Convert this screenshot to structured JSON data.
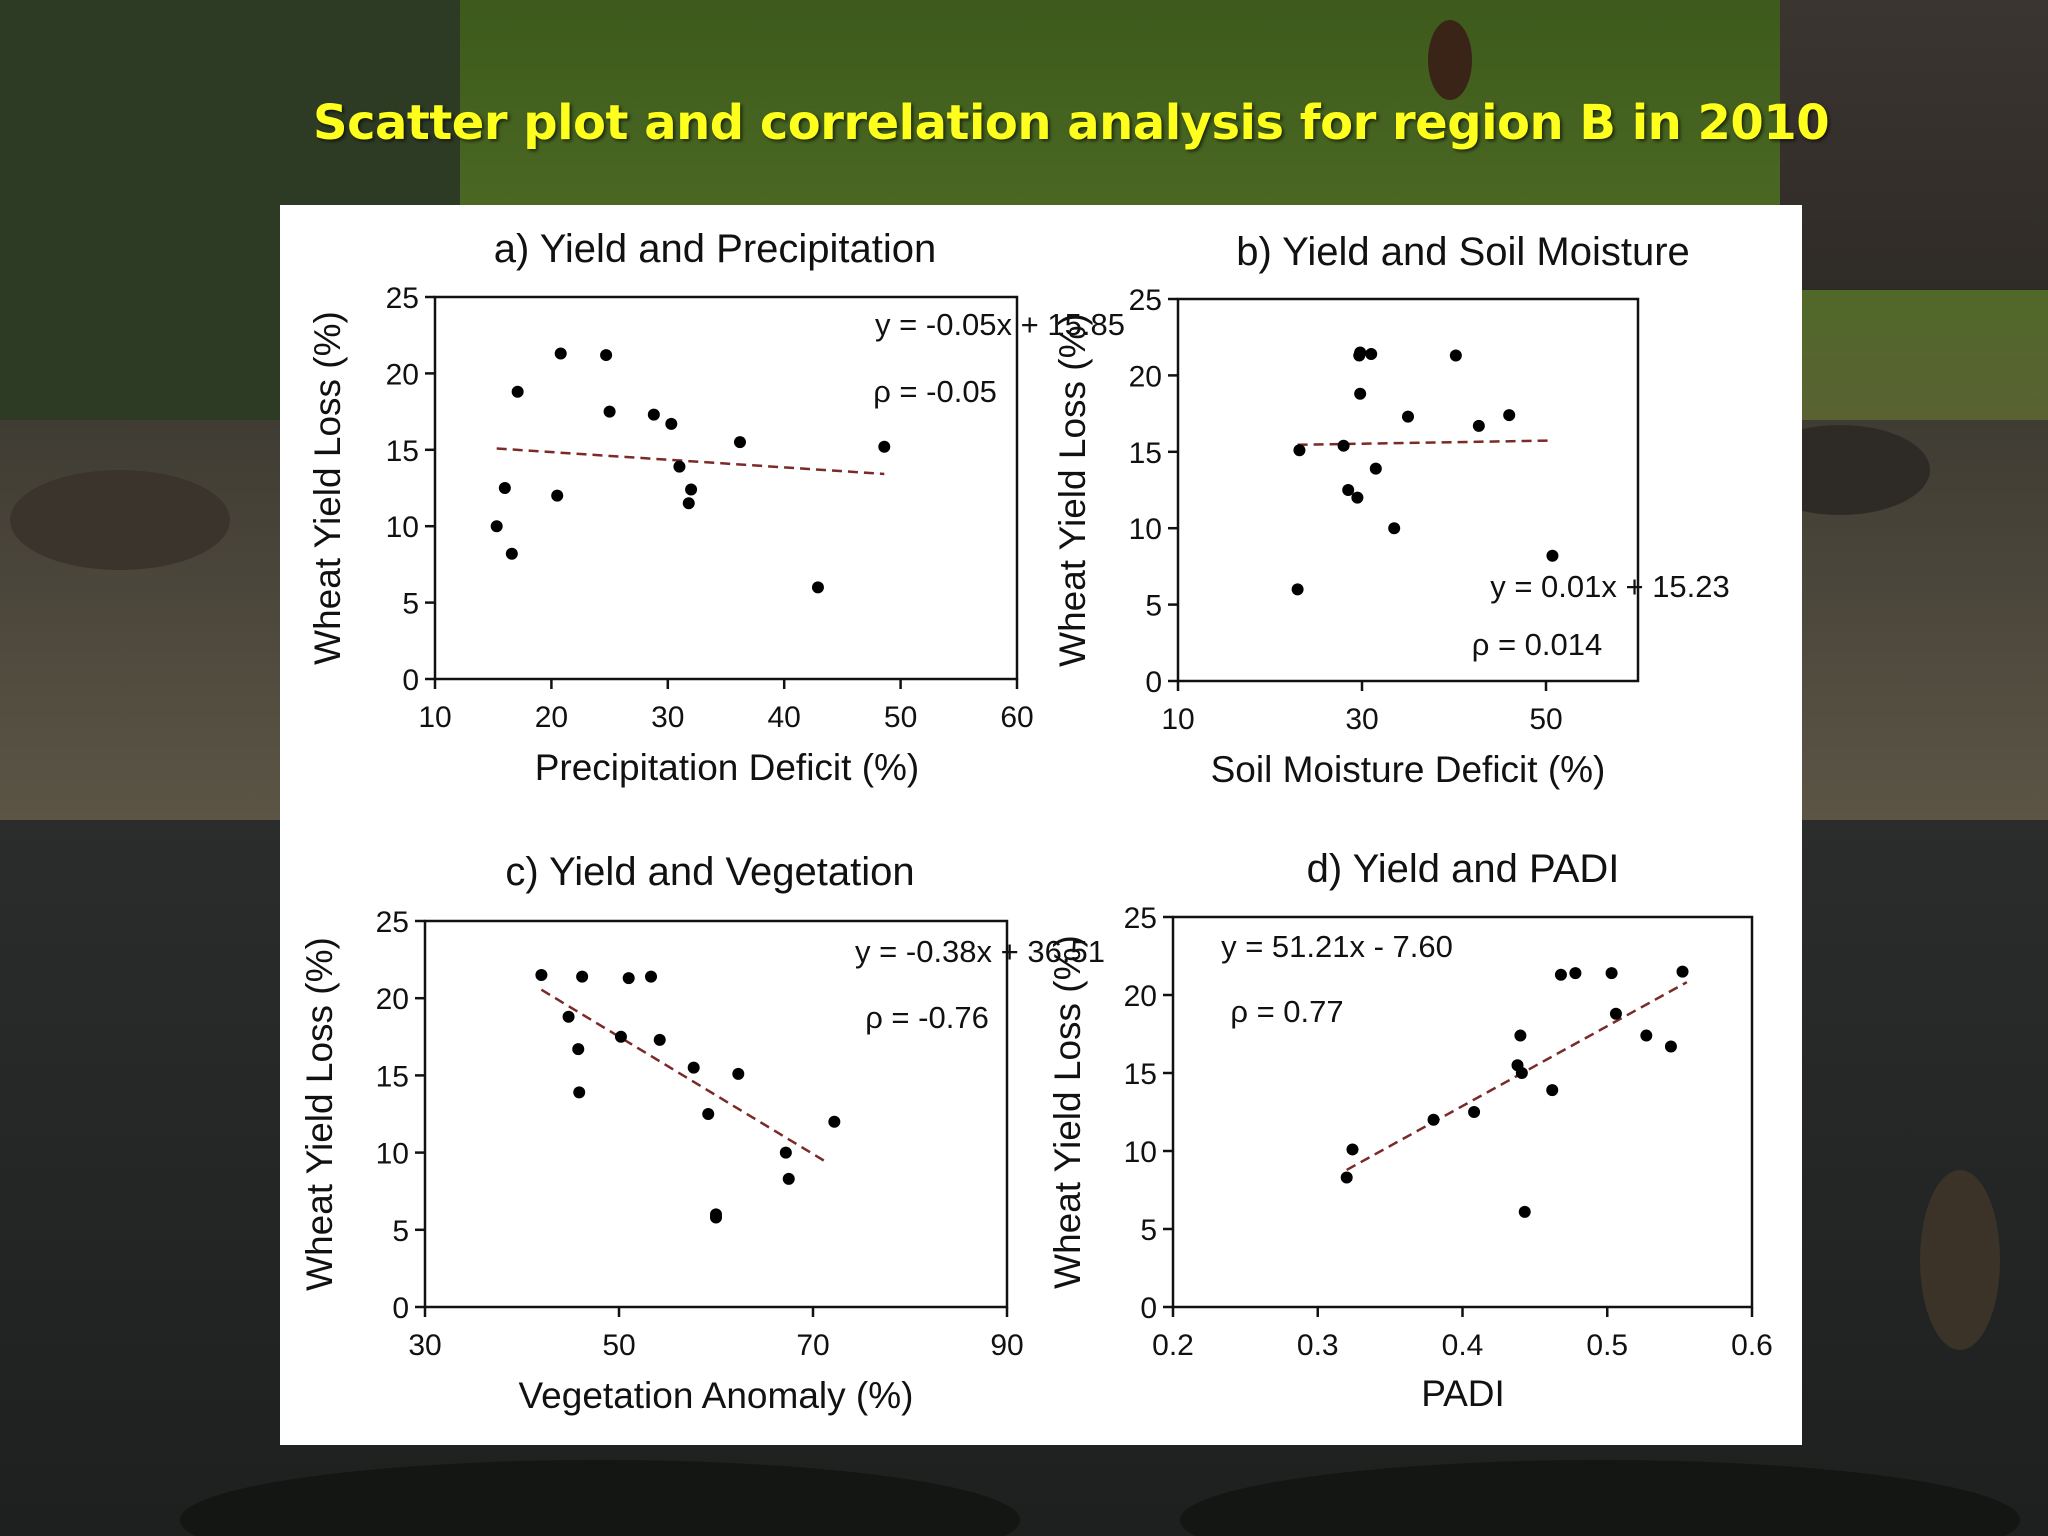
{
  "slide": {
    "title": "Scatter plot and correlation analysis for region B in 2010"
  },
  "colors": {
    "title": "#ffff1e",
    "trendline": "#7a2a28",
    "points": "#000000",
    "panel": "#ffffff"
  },
  "chart_data": [
    {
      "type": "scatter",
      "title": "a) Yield and Precipitation",
      "xlabel": "Precipitation Deficit (%)",
      "ylabel": "Wheat Yield Loss (%)",
      "xlim": [
        10,
        60
      ],
      "ylim": [
        0,
        25
      ],
      "xticks": [
        10,
        20,
        30,
        40,
        50,
        60
      ],
      "xtick_labels": [
        "10",
        "20",
        "30",
        "40",
        "50",
        "60"
      ],
      "yticks": [
        0,
        5,
        10,
        15,
        20,
        25
      ],
      "ytick_labels": [
        "0",
        "5",
        "10",
        "15",
        "20",
        "25"
      ],
      "equation": "y = -0.05x + 15.85",
      "rho": "ρ = -0.05",
      "annotation_position": "top-right",
      "trend": {
        "slope": -0.05,
        "intercept": 15.85,
        "x_range": [
          15.3,
          48.6
        ]
      },
      "points": [
        {
          "x": 15.3,
          "y": 10.0
        },
        {
          "x": 16.0,
          "y": 12.5
        },
        {
          "x": 16.6,
          "y": 8.2
        },
        {
          "x": 17.1,
          "y": 18.8
        },
        {
          "x": 20.5,
          "y": 12.0
        },
        {
          "x": 20.8,
          "y": 21.3
        },
        {
          "x": 24.7,
          "y": 21.2
        },
        {
          "x": 25.0,
          "y": 17.5
        },
        {
          "x": 28.8,
          "y": 17.3
        },
        {
          "x": 30.3,
          "y": 16.7
        },
        {
          "x": 31.0,
          "y": 13.9
        },
        {
          "x": 31.8,
          "y": 11.5
        },
        {
          "x": 32.0,
          "y": 12.4
        },
        {
          "x": 36.2,
          "y": 15.5
        },
        {
          "x": 42.9,
          "y": 6.0
        },
        {
          "x": 48.6,
          "y": 15.2
        }
      ]
    },
    {
      "type": "scatter",
      "title": "b) Yield and Soil Moisture",
      "xlabel": "Soil Moisture Deficit (%)",
      "ylabel": "Wheat Yield Loss (%)",
      "xlim": [
        10,
        60
      ],
      "ylim": [
        0,
        25
      ],
      "xticks": [
        10,
        30,
        50
      ],
      "xtick_labels": [
        "10",
        "30",
        "50"
      ],
      "yticks": [
        0,
        5,
        10,
        15,
        20,
        25
      ],
      "ytick_labels": [
        "0",
        "5",
        "10",
        "15",
        "20",
        "25"
      ],
      "equation": "y = 0.01x + 15.23",
      "rho": "ρ = 0.014",
      "annotation_position": "bottom-right",
      "trend": {
        "slope": 0.01,
        "intercept": 15.23,
        "x_range": [
          23.0,
          50.8
        ]
      },
      "points": [
        {
          "x": 23.0,
          "y": 6.0
        },
        {
          "x": 23.2,
          "y": 15.1
        },
        {
          "x": 28.0,
          "y": 15.4
        },
        {
          "x": 28.5,
          "y": 12.5
        },
        {
          "x": 29.5,
          "y": 12.0
        },
        {
          "x": 29.7,
          "y": 21.3
        },
        {
          "x": 29.8,
          "y": 21.5
        },
        {
          "x": 29.8,
          "y": 18.8
        },
        {
          "x": 31.0,
          "y": 21.4
        },
        {
          "x": 31.5,
          "y": 13.9
        },
        {
          "x": 33.5,
          "y": 10.0
        },
        {
          "x": 35.0,
          "y": 17.3
        },
        {
          "x": 40.2,
          "y": 21.3
        },
        {
          "x": 42.7,
          "y": 16.7
        },
        {
          "x": 46.0,
          "y": 17.4
        },
        {
          "x": 50.7,
          "y": 8.2
        }
      ]
    },
    {
      "type": "scatter",
      "title": "c) Yield and Vegetation",
      "xlabel": "Vegetation Anomaly (%)",
      "ylabel": "Wheat Yield Loss (%)",
      "xlim": [
        30,
        90
      ],
      "ylim": [
        0,
        25
      ],
      "xticks": [
        30,
        50,
        70,
        90
      ],
      "xtick_labels": [
        "30",
        "50",
        "70",
        "90"
      ],
      "yticks": [
        0,
        5,
        10,
        15,
        20,
        25
      ],
      "ytick_labels": [
        "0",
        "5",
        "10",
        "15",
        "20",
        "25"
      ],
      "equation": "y = -0.38x + 36.51",
      "rho": "ρ = -0.76",
      "annotation_position": "top-right",
      "trend": {
        "slope": -0.38,
        "intercept": 36.51,
        "x_range": [
          42.0,
          71.5
        ]
      },
      "points": [
        {
          "x": 42.0,
          "y": 21.5
        },
        {
          "x": 44.8,
          "y": 18.8
        },
        {
          "x": 45.8,
          "y": 16.7
        },
        {
          "x": 45.9,
          "y": 13.9
        },
        {
          "x": 46.2,
          "y": 21.4
        },
        {
          "x": 50.2,
          "y": 17.5
        },
        {
          "x": 51.0,
          "y": 21.3
        },
        {
          "x": 53.3,
          "y": 21.4
        },
        {
          "x": 54.2,
          "y": 17.3
        },
        {
          "x": 57.7,
          "y": 15.5
        },
        {
          "x": 59.2,
          "y": 12.5
        },
        {
          "x": 60.0,
          "y": 6.0
        },
        {
          "x": 60.0,
          "y": 5.8
        },
        {
          "x": 62.3,
          "y": 15.1
        },
        {
          "x": 67.2,
          "y": 10.0
        },
        {
          "x": 67.5,
          "y": 8.3
        },
        {
          "x": 72.2,
          "y": 12.0
        }
      ]
    },
    {
      "type": "scatter",
      "title": "d) Yield and PADI",
      "xlabel": "PADI",
      "ylabel": "Wheat Yield Loss (%)",
      "xlim": [
        0.2,
        0.6
      ],
      "ylim": [
        0,
        25
      ],
      "xticks": [
        0.2,
        0.3,
        0.4,
        0.5,
        0.6
      ],
      "xtick_labels": [
        "0.2",
        "0.3",
        "0.4",
        "0.5",
        "0.6"
      ],
      "yticks": [
        0,
        5,
        10,
        15,
        20,
        25
      ],
      "ytick_labels": [
        "0",
        "5",
        "10",
        "15",
        "20",
        "25"
      ],
      "equation": "y = 51.21x - 7.60",
      "rho": "ρ = 0.77",
      "annotation_position": "top-left",
      "trend": {
        "slope": 51.21,
        "intercept": -7.6,
        "x_range": [
          0.32,
          0.555
        ]
      },
      "points": [
        {
          "x": 0.32,
          "y": 8.3
        },
        {
          "x": 0.324,
          "y": 10.1
        },
        {
          "x": 0.38,
          "y": 12.0
        },
        {
          "x": 0.408,
          "y": 12.5
        },
        {
          "x": 0.438,
          "y": 15.5
        },
        {
          "x": 0.44,
          "y": 17.4
        },
        {
          "x": 0.441,
          "y": 15.0
        },
        {
          "x": 0.443,
          "y": 6.1
        },
        {
          "x": 0.462,
          "y": 13.9
        },
        {
          "x": 0.468,
          "y": 21.3
        },
        {
          "x": 0.478,
          "y": 21.4
        },
        {
          "x": 0.503,
          "y": 21.4
        },
        {
          "x": 0.506,
          "y": 18.8
        },
        {
          "x": 0.527,
          "y": 17.4
        },
        {
          "x": 0.544,
          "y": 16.7
        },
        {
          "x": 0.552,
          "y": 21.5
        }
      ]
    }
  ]
}
